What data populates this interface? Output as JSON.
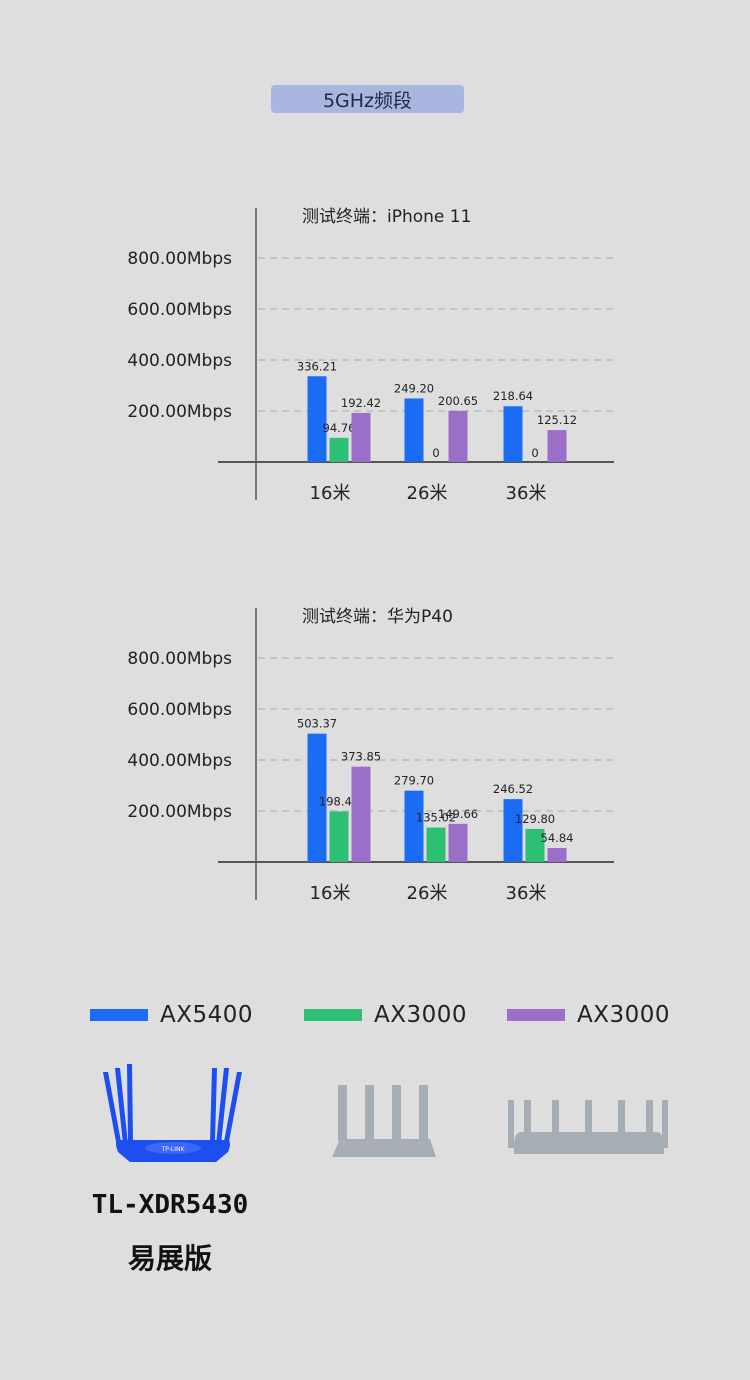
{
  "header": {
    "title": "5GHz频段"
  },
  "chart_data": [
    {
      "type": "bar",
      "title": "测试终端：iPhone 11",
      "categories": [
        "16米",
        "26米",
        "36米"
      ],
      "y_tick_labels": [
        "800.00Mbps",
        "600.00Mbps",
        "400.00Mbps",
        "200.00Mbps"
      ],
      "y_ticks": [
        800,
        600,
        400,
        200
      ],
      "ylim": [
        0,
        1000
      ],
      "grid": true,
      "series": [
        {
          "name": "AX5400",
          "color": "#1a6cf5",
          "values": [
            336.21,
            249.2,
            218.64
          ],
          "labels": [
            "336.21",
            "249.20",
            "218.64"
          ]
        },
        {
          "name": "AX3000",
          "color": "#2dbf74",
          "values": [
            94.76,
            0,
            0
          ],
          "labels": [
            "94.76",
            "0",
            "0"
          ]
        },
        {
          "name": "AX3000",
          "color": "#9b6ec8",
          "values": [
            192.42,
            200.65,
            125.12
          ],
          "labels": [
            "192.42",
            "200.65",
            "125.12"
          ]
        }
      ]
    },
    {
      "type": "bar",
      "title": "测试终端：华为P40",
      "categories": [
        "16米",
        "26米",
        "36米"
      ],
      "y_tick_labels": [
        "800.00Mbps",
        "600.00Mbps",
        "400.00Mbps",
        "200.00Mbps"
      ],
      "y_ticks": [
        800,
        600,
        400,
        200
      ],
      "ylim": [
        0,
        1000
      ],
      "grid": true,
      "series": [
        {
          "name": "AX5400",
          "color": "#1a6cf5",
          "values": [
            503.37,
            279.7,
            246.52
          ],
          "labels": [
            "503.37",
            "279.70",
            "246.52"
          ]
        },
        {
          "name": "AX3000",
          "color": "#2dbf74",
          "values": [
            198.42,
            135.02,
            129.8
          ],
          "labels": [
            "198.42",
            "135.02",
            "129.80"
          ]
        },
        {
          "name": "AX3000",
          "color": "#9b6ec8",
          "values": [
            373.85,
            149.66,
            54.84
          ],
          "labels": [
            "373.85",
            "149.66",
            "54.84"
          ]
        }
      ]
    }
  ],
  "legend": [
    {
      "label": "AX5400",
      "color": "#1a6cf5"
    },
    {
      "label": "AX3000",
      "color": "#2dbf74"
    },
    {
      "label": "AX3000",
      "color": "#9b6ec8"
    }
  ],
  "product": {
    "model": "TL-XDR5430",
    "edition": "易展版",
    "logo_text": "TP-LINK",
    "router_icons": [
      "router-blue-icon",
      "router-gray-icon",
      "router-gray-wide-icon"
    ]
  }
}
